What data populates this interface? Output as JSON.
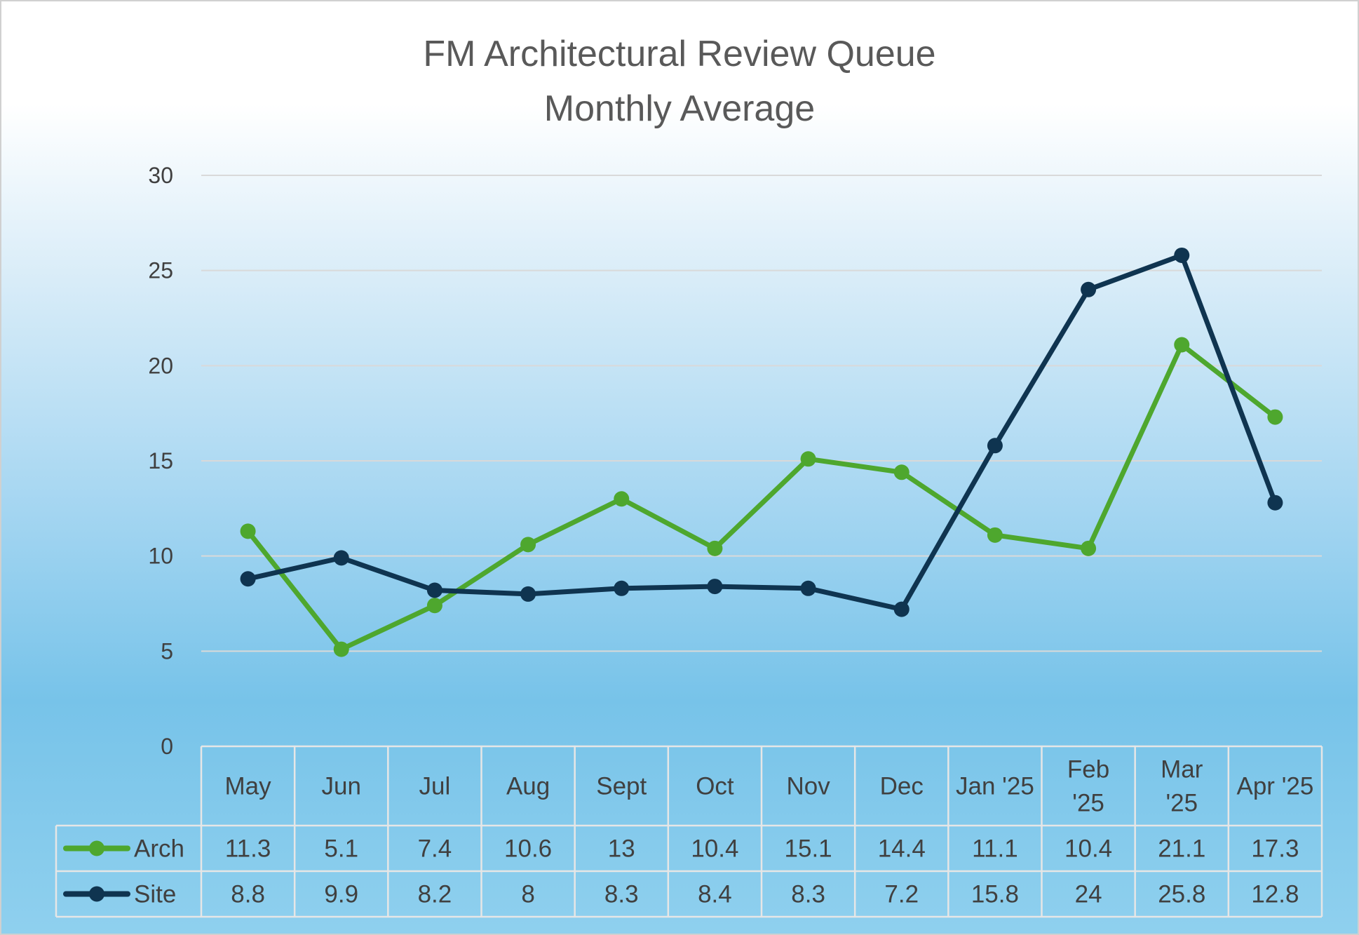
{
  "chart_data": {
    "type": "line",
    "title": [
      "FM Architectural Review Queue",
      "Monthly Average"
    ],
    "categories": [
      [
        "May"
      ],
      [
        "Jun"
      ],
      [
        "Jul"
      ],
      [
        "Aug"
      ],
      [
        "Sept"
      ],
      [
        "Oct"
      ],
      [
        "Nov"
      ],
      [
        "Dec"
      ],
      [
        "Jan '25"
      ],
      [
        "Feb",
        "'25"
      ],
      [
        "Mar",
        "'25"
      ],
      [
        "Apr '25"
      ]
    ],
    "series": [
      {
        "name": "Arch",
        "color": "#4ea72e",
        "values": [
          11.3,
          5.1,
          7.4,
          10.6,
          13,
          10.4,
          15.1,
          14.4,
          11.1,
          10.4,
          21.1,
          17.3
        ],
        "labels": [
          "11.3",
          "5.1",
          "7.4",
          "10.6",
          "13",
          "10.4",
          "15.1",
          "14.4",
          "11.1",
          "10.4",
          "21.1",
          "17.3"
        ]
      },
      {
        "name": "Site",
        "color": "#0f3450",
        "values": [
          8.8,
          9.9,
          8.2,
          8,
          8.3,
          8.4,
          8.3,
          7.2,
          15.8,
          24,
          25.8,
          12.8
        ],
        "labels": [
          "8.8",
          "9.9",
          "8.2",
          "8",
          "8.3",
          "8.4",
          "8.3",
          "7.2",
          "15.8",
          "24",
          "25.8",
          "12.8"
        ]
      }
    ],
    "ylim": [
      0,
      30
    ],
    "yticks": [
      0,
      5,
      10,
      15,
      20,
      25,
      30
    ],
    "ytick_labels": [
      "0",
      "5",
      "10",
      "15",
      "20",
      "25",
      "30"
    ],
    "grid": true,
    "legend": "data-table",
    "data_table": true
  }
}
